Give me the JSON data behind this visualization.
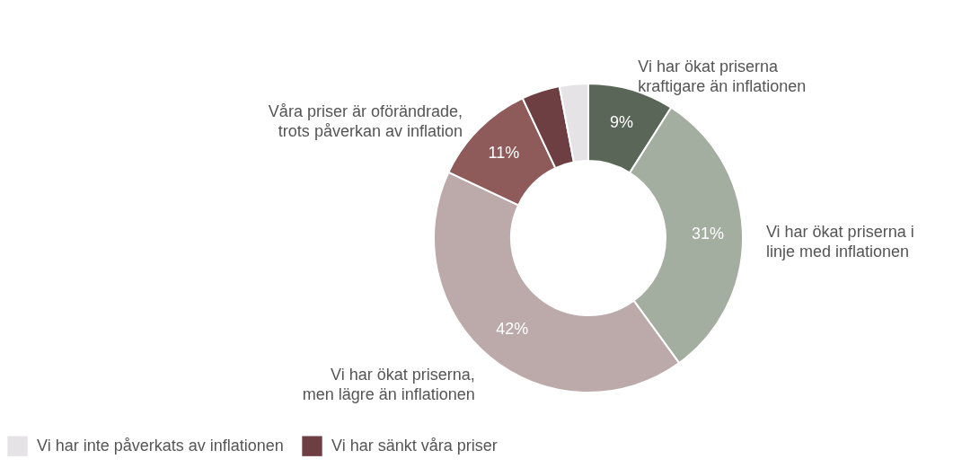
{
  "chart_data": {
    "type": "donut",
    "categories": [
      "Vi har ökat priserna kraftigare än inflationen",
      "Vi har ökat priserna i linje med inflationen",
      "Vi har ökat priserna, men lägre än inflationen",
      "Våra priser är oförändrade, trots påverkan av inflation",
      "Vi har sänkt våra priser",
      "Vi har inte påverkats av inflationen"
    ],
    "values": [
      9,
      31,
      42,
      11,
      4,
      3
    ],
    "colors": [
      "#5a6657",
      "#a3ada0",
      "#bcaaaa",
      "#8e5a5a",
      "#6e3f42",
      "#e6e3e6"
    ],
    "value_labels": [
      "9%",
      "31%",
      "42%",
      "11%",
      null,
      null
    ],
    "legend": "bottom left"
  }
}
